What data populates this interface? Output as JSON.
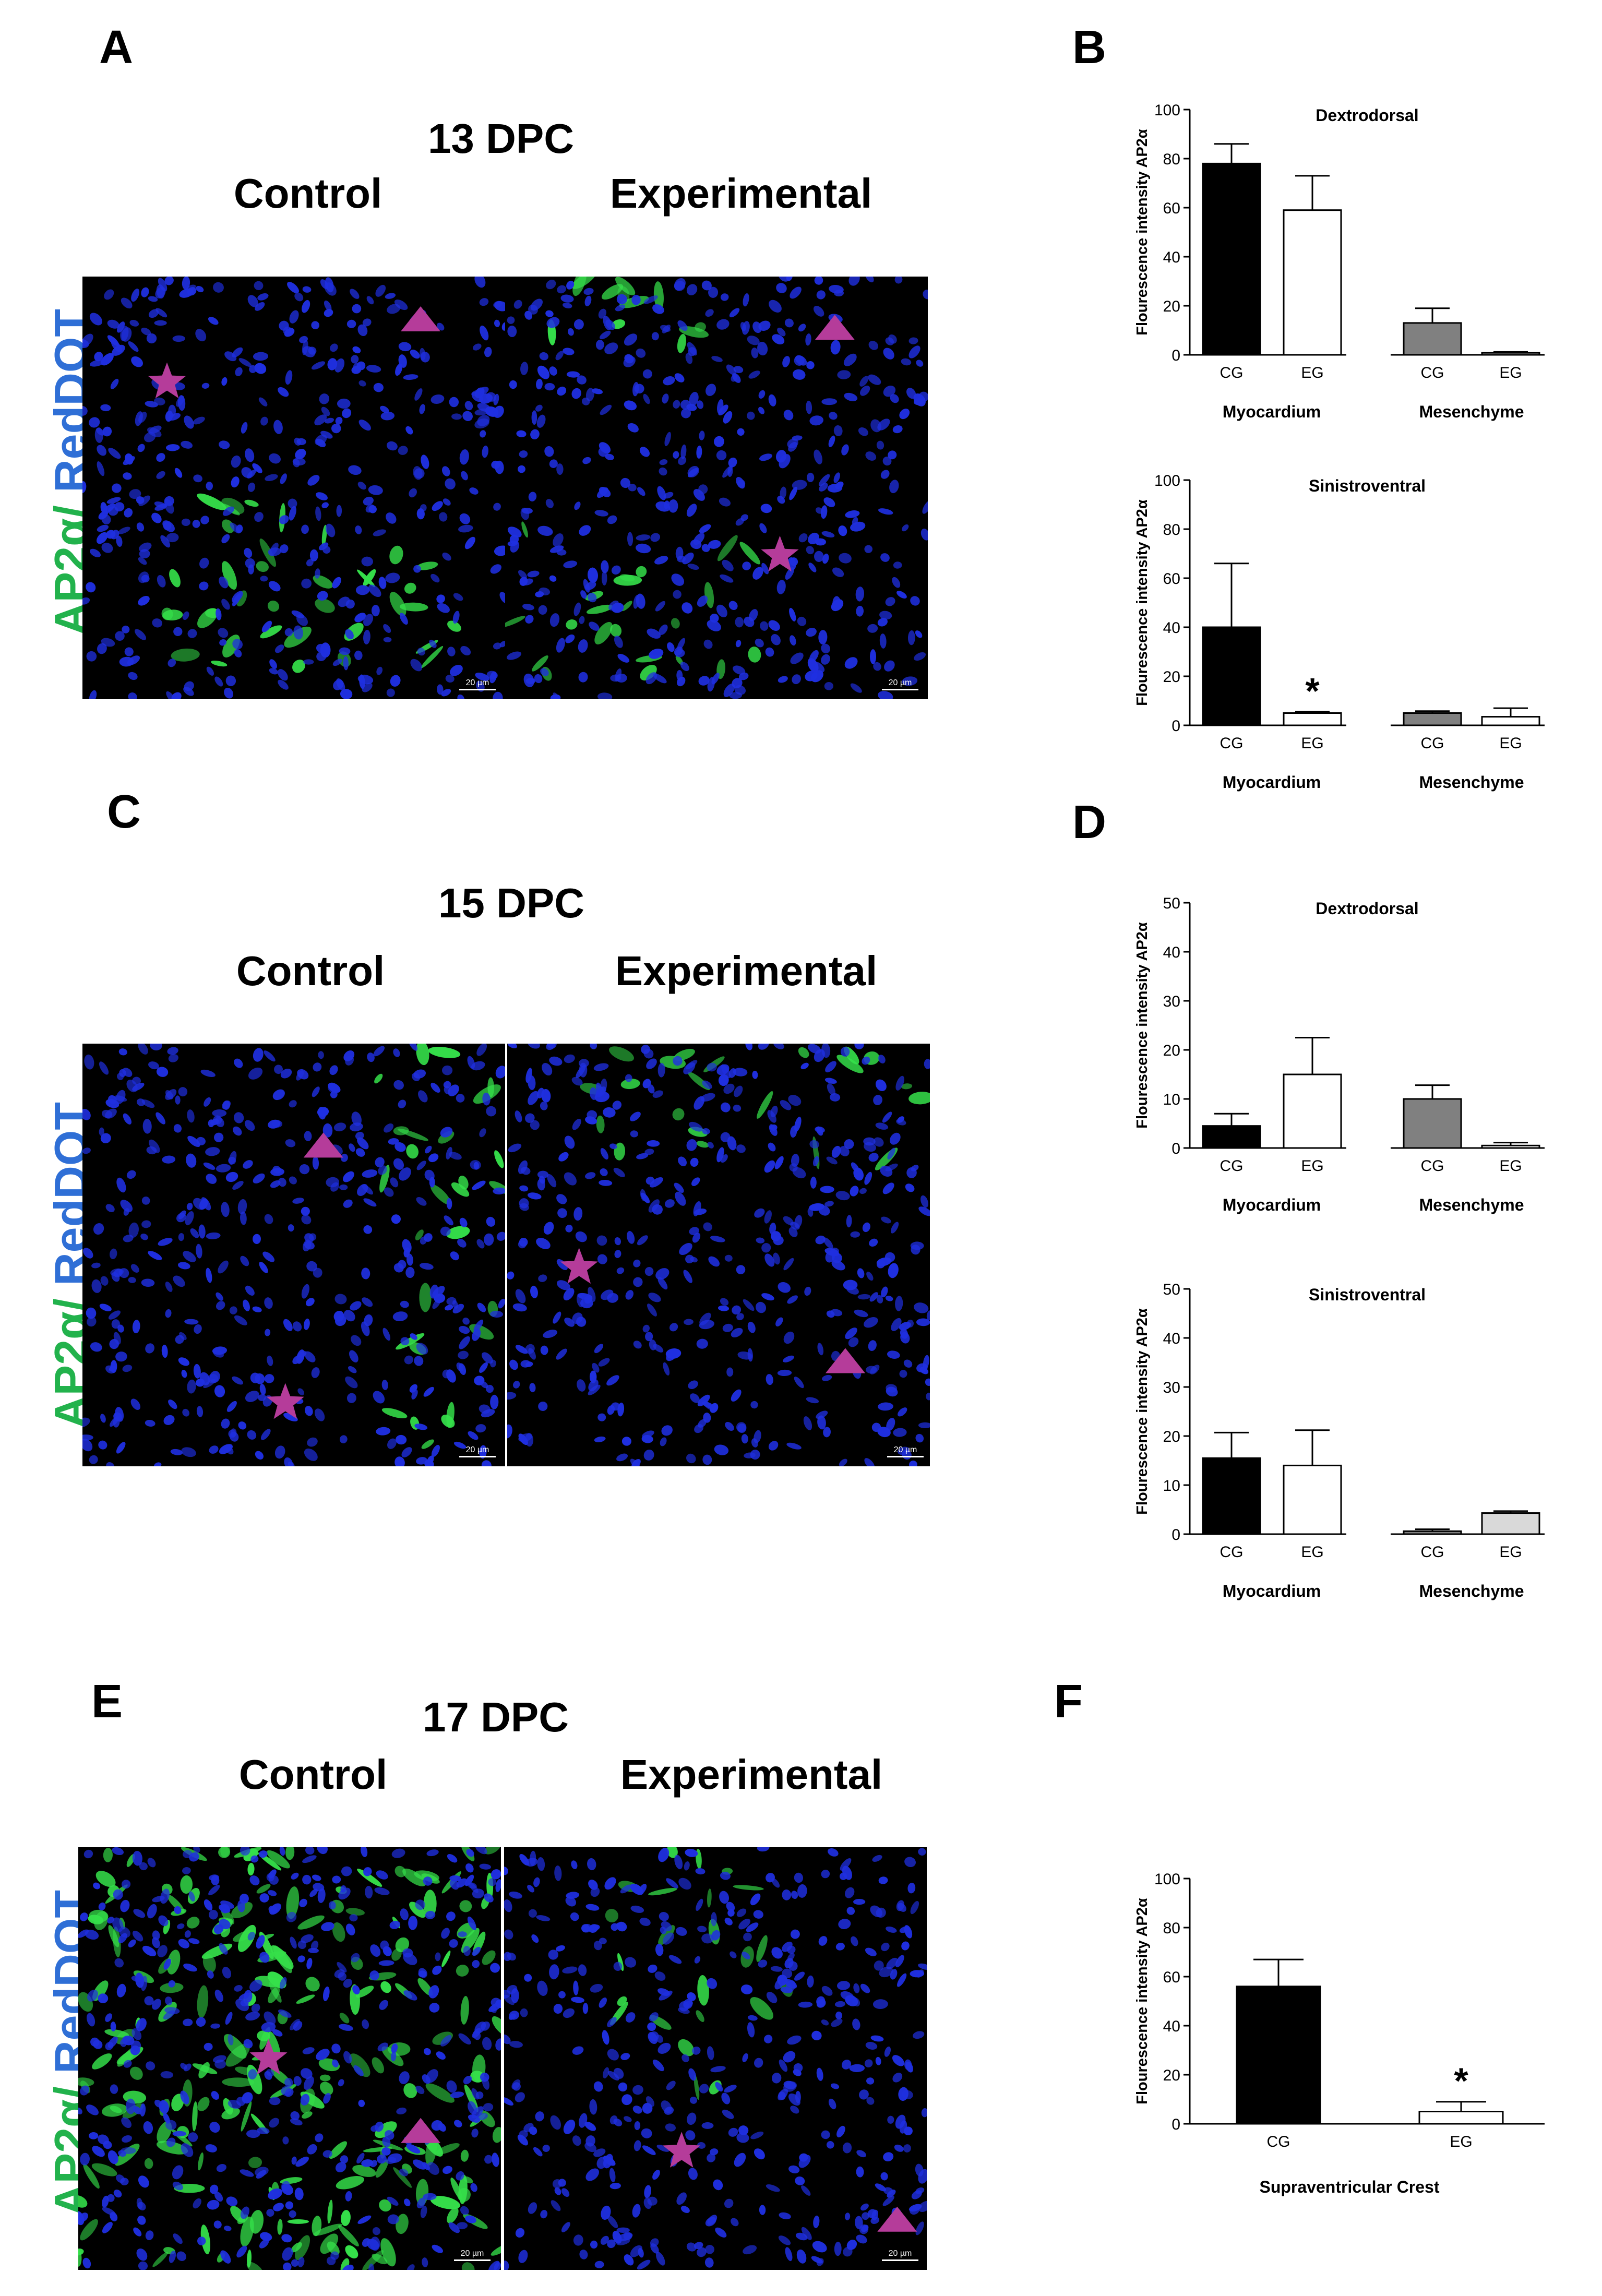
{
  "colors": {
    "nucleus_blue": "#1f2fe0",
    "ap2a_green": "#35e04a",
    "marker_magenta": "#b53c9a",
    "label_green": "#22b24c",
    "label_blue": "#2f6fd6"
  },
  "panels": {
    "A": {
      "letter": "A",
      "stage": "13 DPC",
      "control_label": "Control",
      "experimental_label": "Experimental",
      "stain_green": "AP2α/",
      "stain_blue": " RedDOT",
      "scale_left": "20 µm",
      "scale_right": "20 µm"
    },
    "C": {
      "letter": "C",
      "stage": "15 DPC",
      "control_label": "Control",
      "experimental_label": "Experimental",
      "stain_green": "AP2α/",
      "stain_blue": " RedDOT",
      "scale_left": "20 µm",
      "scale_right": "20 µm"
    },
    "E": {
      "letter": "E",
      "stage": "17 DPC",
      "control_label": "Control",
      "experimental_label": "Experimental",
      "stain_green": "AP2α/",
      "stain_blue": " RedDOT",
      "scale_left": "20 µm",
      "scale_right": "20 µm"
    },
    "B": {
      "letter": "B"
    },
    "D": {
      "letter": "D"
    },
    "F": {
      "letter": "F"
    }
  },
  "chart_data": [
    {
      "id": "B1",
      "type": "bar",
      "title": "Dextrodorsal",
      "ylabel": "Flourescence intensity AP2α",
      "ylim": [
        0,
        100
      ],
      "yticks": [
        "0",
        "20",
        "40",
        "60",
        "80",
        "100"
      ],
      "categories": [
        "CG",
        "EG",
        "CG",
        "EG"
      ],
      "groups": [
        "Myocardium",
        "Mesenchyme"
      ],
      "values": [
        78,
        59,
        13,
        0.8
      ],
      "errors": [
        8,
        14,
        6,
        0.4
      ],
      "fills": [
        "#000000",
        "#ffffff",
        "#808080",
        "#ffffff"
      ],
      "significance": []
    },
    {
      "id": "B2",
      "type": "bar",
      "title": "Sinistroventral",
      "ylabel": "Flourescence intensity AP2α",
      "ylim": [
        0,
        100
      ],
      "yticks": [
        "0",
        "20",
        "40",
        "60",
        "80",
        "100"
      ],
      "categories": [
        "CG",
        "EG",
        "CG",
        "EG"
      ],
      "groups": [
        "Myocardium",
        "Mesenchyme"
      ],
      "values": [
        40,
        5,
        5,
        3.5
      ],
      "errors": [
        26,
        0.5,
        0.8,
        3.5
      ],
      "fills": [
        "#000000",
        "#ffffff",
        "#808080",
        "#ffffff"
      ],
      "significance": [
        "",
        "*",
        "",
        ""
      ]
    },
    {
      "id": "D1",
      "type": "bar",
      "title": "Dextrodorsal",
      "ylabel": "Flourescence intensity AP2α",
      "ylim": [
        0,
        50
      ],
      "yticks": [
        "0",
        "10",
        "20",
        "30",
        "40",
        "50"
      ],
      "categories": [
        "CG",
        "EG",
        "CG",
        "EG"
      ],
      "groups": [
        "Myocardium",
        "Mesenchyme"
      ],
      "values": [
        4.5,
        15,
        10,
        0.5
      ],
      "errors": [
        2.5,
        7.5,
        2.8,
        0.6
      ],
      "fills": [
        "#000000",
        "#ffffff",
        "#808080",
        "#ffffff"
      ],
      "significance": []
    },
    {
      "id": "D2",
      "type": "bar",
      "title": "Sinistroventral",
      "ylabel": "Flourescence intensity AP2α",
      "ylim": [
        0,
        50
      ],
      "yticks": [
        "0",
        "10",
        "20",
        "30",
        "40",
        "50"
      ],
      "categories": [
        "CG",
        "EG",
        "CG",
        "EG"
      ],
      "groups": [
        "Myocardium",
        "Mesenchyme"
      ],
      "values": [
        15.5,
        14,
        0.6,
        4.3
      ],
      "errors": [
        5.2,
        7.2,
        0.4,
        0.4
      ],
      "fills": [
        "#000000",
        "#ffffff",
        "#808080",
        "#d9d9d9"
      ],
      "significance": []
    },
    {
      "id": "F1",
      "type": "bar",
      "title": "",
      "ylabel": "Flourescence intensity AP2α",
      "ylim": [
        0,
        100
      ],
      "yticks": [
        "0",
        "20",
        "40",
        "60",
        "80",
        "100"
      ],
      "categories": [
        "CG",
        "EG"
      ],
      "groups": [
        "Supraventricular Crest"
      ],
      "values": [
        56,
        5
      ],
      "errors": [
        11,
        4
      ],
      "fills": [
        "#000000",
        "#ffffff"
      ],
      "significance": [
        "",
        "*"
      ]
    }
  ]
}
